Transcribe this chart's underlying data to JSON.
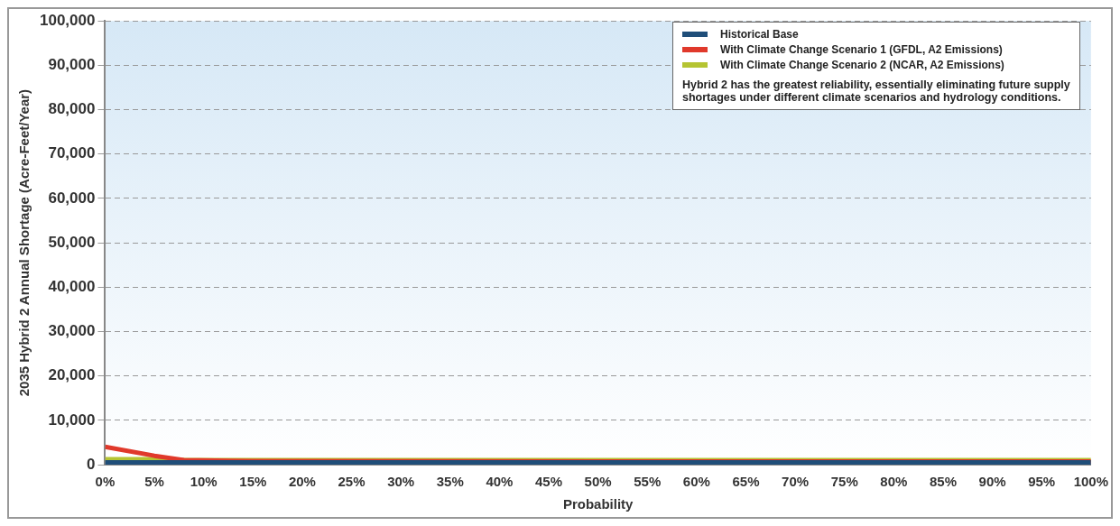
{
  "chart_data": {
    "type": "line",
    "xlabel": "Probability",
    "ylabel": "2035 Hybrid 2 Annual Shortage (Acre-Feet/Year)",
    "xlim": [
      0,
      100
    ],
    "ylim": [
      0,
      100000
    ],
    "xticks": [
      {
        "value": 0,
        "label": "0%"
      },
      {
        "value": 5,
        "label": "5%"
      },
      {
        "value": 10,
        "label": "10%"
      },
      {
        "value": 15,
        "label": "15%"
      },
      {
        "value": 20,
        "label": "20%"
      },
      {
        "value": 25,
        "label": "25%"
      },
      {
        "value": 30,
        "label": "30%"
      },
      {
        "value": 35,
        "label": "35%"
      },
      {
        "value": 40,
        "label": "40%"
      },
      {
        "value": 45,
        "label": "45%"
      },
      {
        "value": 50,
        "label": "50%"
      },
      {
        "value": 55,
        "label": "55%"
      },
      {
        "value": 60,
        "label": "60%"
      },
      {
        "value": 65,
        "label": "65%"
      },
      {
        "value": 70,
        "label": "70%"
      },
      {
        "value": 75,
        "label": "75%"
      },
      {
        "value": 80,
        "label": "80%"
      },
      {
        "value": 85,
        "label": "85%"
      },
      {
        "value": 90,
        "label": "90%"
      },
      {
        "value": 95,
        "label": "95%"
      },
      {
        "value": 100,
        "label": "100%"
      }
    ],
    "yticks": [
      0,
      {
        "value": 10000,
        "label": "10,000"
      },
      {
        "value": 20000,
        "label": "20,000"
      },
      {
        "value": 30000,
        "label": "30,000"
      },
      {
        "value": 40000,
        "label": "40,000"
      },
      {
        "value": 50000,
        "label": "50,000"
      },
      {
        "value": 60000,
        "label": "60,000"
      },
      {
        "value": 70000,
        "label": "70,000"
      },
      {
        "value": 80000,
        "label": "80,000"
      },
      {
        "value": 90000,
        "label": "90,000"
      },
      {
        "value": 100000,
        "label": "100,000"
      }
    ],
    "x": [
      0,
      5,
      8,
      15,
      50,
      100
    ],
    "series": [
      {
        "name": "Historical Base",
        "color": "#1f4e79",
        "values": [
          500,
          500,
          500,
          500,
          500,
          500
        ]
      },
      {
        "name": "With Climate Change Scenario 1 (GFDL, A2 Emissions)",
        "color": "#e0392b",
        "values": [
          4000,
          2000,
          1000,
          800,
          700,
          700
        ]
      },
      {
        "name": "With Climate Change Scenario 2 (NCAR, A2 Emissions)",
        "color": "#b5c432",
        "values": [
          1200,
          1200,
          1000,
          1000,
          1000,
          1000
        ]
      }
    ],
    "grid": "y",
    "line_style": "solid",
    "marker": "none",
    "legend": "top right",
    "annotations": [
      "Hybrid 2 has the greatest reliability, essentially eliminating future supply shortages under different climate scenarios and hydrology conditions."
    ]
  }
}
